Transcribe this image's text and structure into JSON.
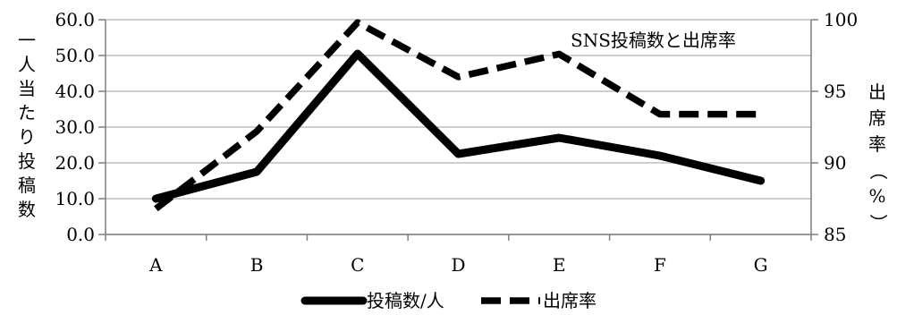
{
  "chart_data": {
    "type": "line",
    "categories": [
      "A",
      "B",
      "C",
      "D",
      "E",
      "F",
      "G"
    ],
    "series": [
      {
        "name": "投稿数/人",
        "axis": "left",
        "style": "solid",
        "values": [
          10.0,
          17.5,
          50.5,
          22.5,
          27.0,
          22.0,
          15.0
        ]
      },
      {
        "name": "出席率",
        "axis": "right",
        "style": "dashed",
        "values": [
          86.8,
          92.2,
          99.8,
          96.0,
          97.6,
          93.4,
          93.4
        ]
      }
    ],
    "y_left": {
      "label": "一人当たり投稿数",
      "range": [
        0,
        60
      ],
      "ticks": [
        "0.0",
        "10.0",
        "20.0",
        "30.0",
        "40.0",
        "50.0",
        "60.0"
      ]
    },
    "y_right": {
      "label": "出席率（%）",
      "range": [
        85,
        100
      ],
      "ticks": [
        "85",
        "90",
        "95",
        "100"
      ]
    },
    "annotation": "SNS投稿数と出席率",
    "legend": {
      "position": "bottom-center"
    },
    "grid": {
      "horizontal": true,
      "vertical": false
    },
    "colors": {
      "line": "#000000",
      "grid": "#bfbfbf",
      "axis": "#7f7f7f"
    }
  }
}
